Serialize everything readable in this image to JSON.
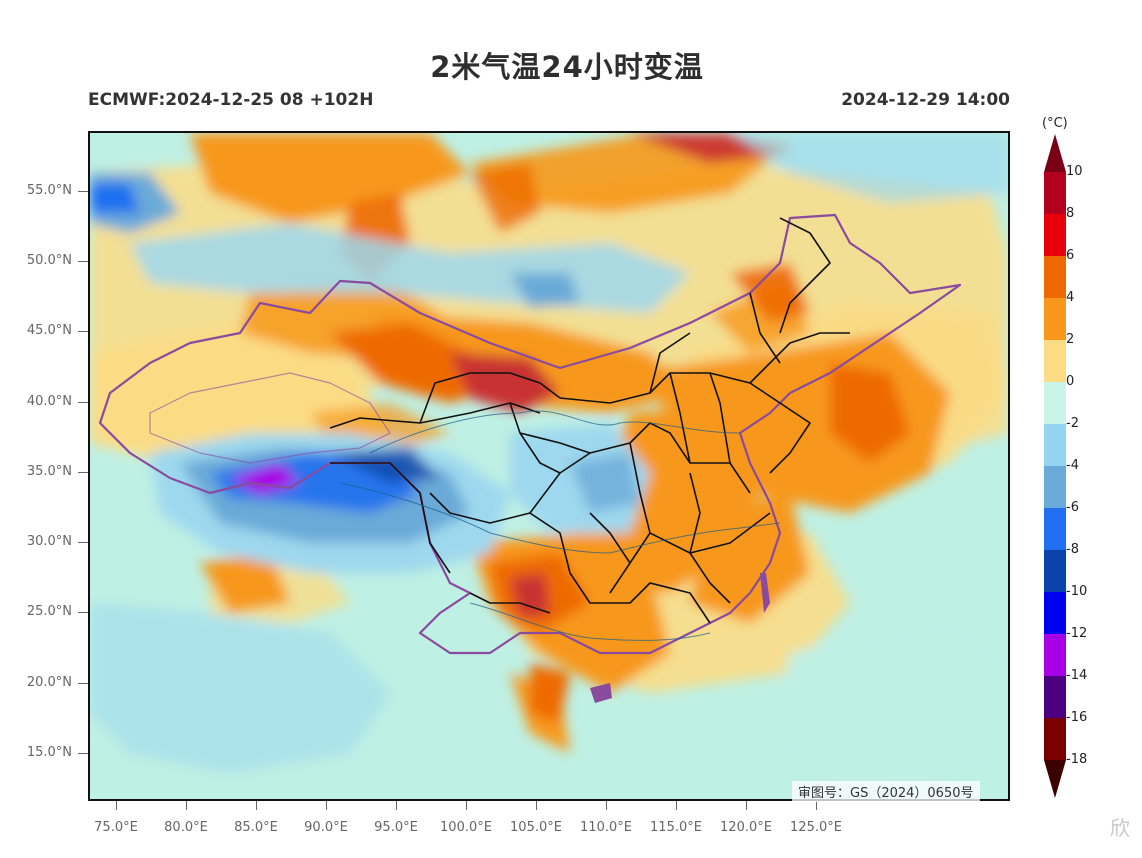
{
  "title": "2米气温24小时变温",
  "subtitle_left": "ECMWF:2024-12-25 08 +102H",
  "subtitle_right": "2024-12-29 14:00",
  "approval_number": "审图号：GS（2024）0650号",
  "watermark": "欣",
  "colorbar": {
    "unit": "(°C)",
    "labels": [
      "10",
      "8",
      "6",
      "4",
      "2",
      "0",
      "-2",
      "-4",
      "-6",
      "-8",
      "-10",
      "-12",
      "-14",
      "-16",
      "-18"
    ],
    "colors": [
      "#7a0016",
      "#b3001f",
      "#e8000b",
      "#ee6a00",
      "#f7981a",
      "#fbdc85",
      "#c8f5e8",
      "#94d4f0",
      "#6aaad8",
      "#1f6ff0",
      "#0a44a8",
      "#0000f0",
      "#a800e6",
      "#4b0082",
      "#7a0000",
      "#3d0000"
    ]
  },
  "axes": {
    "lat_labels": [
      "55.0°N",
      "50.0°N",
      "45.0°N",
      "40.0°N",
      "35.0°N",
      "30.0°N",
      "25.0°N",
      "20.0°N",
      "15.0°N"
    ],
    "lon_labels": [
      "75.0°E",
      "80.0°E",
      "85.0°E",
      "90.0°E",
      "95.0°E",
      "100.0°E",
      "105.0°E",
      "110.0°E",
      "115.0°E",
      "120.0°E",
      "125.0°E"
    ]
  },
  "map_colors": {
    "sea_neutral": "#bff0e4",
    "light_blue": "#9ed8ee",
    "mid_blue": "#6aaad8",
    "deep_blue": "#1f6ff0",
    "purple": "#a800e6",
    "cream": "#fbdc85",
    "orange": "#f7981a",
    "dark_orange": "#ee6a00",
    "red": "#c93030",
    "border_black": "#111111",
    "border_purple": "#8a4a9e"
  }
}
